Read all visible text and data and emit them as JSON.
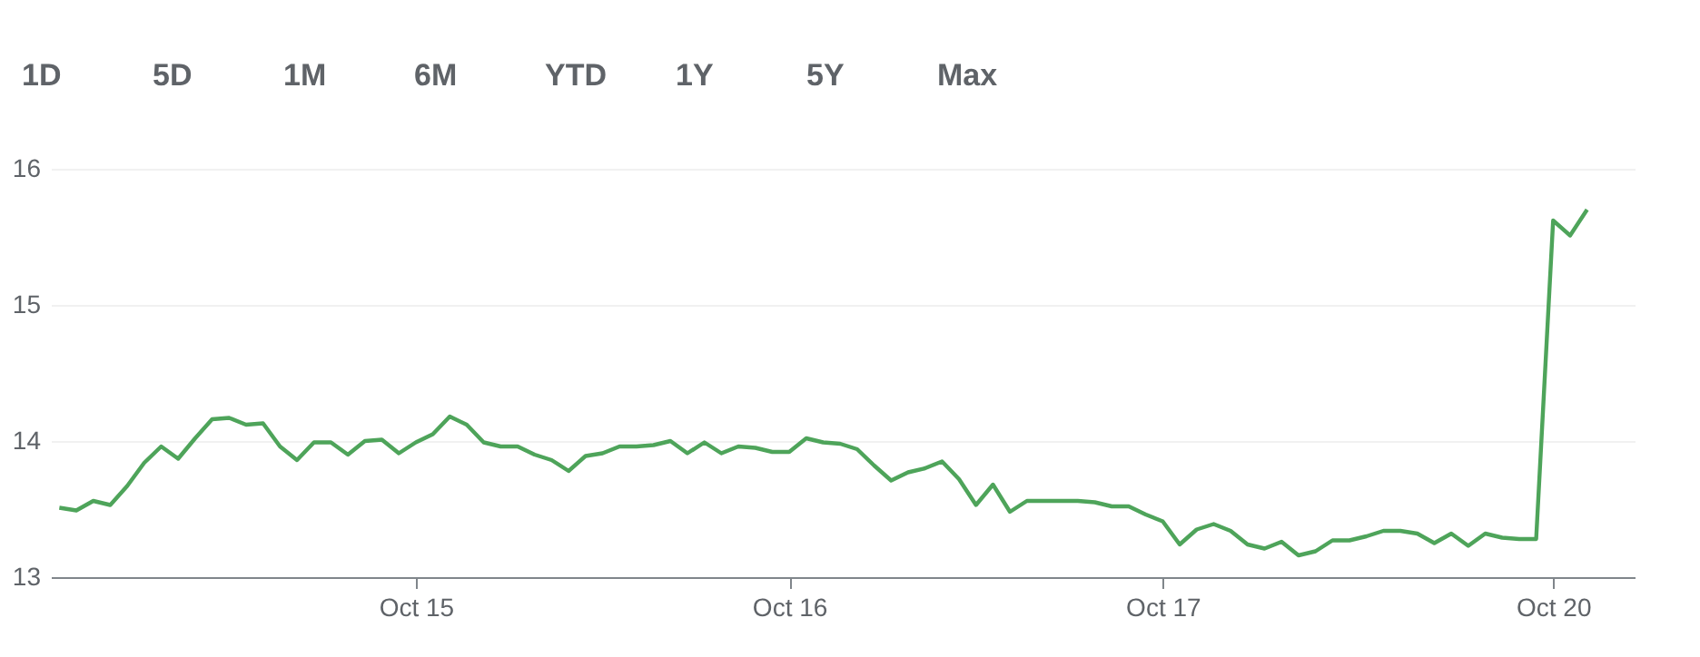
{
  "chart_data": {
    "type": "line",
    "annotations": [
      "1D",
      "5D",
      "1M",
      "6M",
      "YTD",
      "1Y",
      "5Y",
      "Max"
    ],
    "categories": [
      null,
      null,
      null,
      null,
      null,
      null,
      null,
      null,
      null,
      null,
      null,
      null,
      null,
      null,
      null,
      null,
      null,
      null,
      null,
      null,
      null,
      "Oct 15",
      null,
      null,
      null,
      null,
      null,
      null,
      null,
      null,
      null,
      null,
      null,
      null,
      null,
      null,
      null,
      null,
      null,
      null,
      null,
      null,
      null,
      "Oct 16",
      null,
      null,
      null,
      null,
      null,
      null,
      null,
      null,
      null,
      null,
      null,
      null,
      null,
      null,
      null,
      null,
      null,
      null,
      null,
      null,
      null,
      "Oct 17",
      null,
      null,
      null,
      null,
      null,
      null,
      null,
      null,
      null,
      null,
      null,
      null,
      null,
      null,
      null,
      null,
      null,
      null,
      null,
      null,
      null,
      null,
      "Oct 20",
      null,
      null
    ],
    "series": [
      {
        "color": "#4ea45a",
        "values": [
          13.51,
          13.49,
          13.56,
          13.53,
          13.67,
          13.84,
          13.96,
          13.87,
          14.02,
          14.16,
          14.17,
          14.12,
          14.13,
          13.96,
          13.86,
          13.99,
          13.99,
          13.9,
          14.0,
          14.01,
          13.91,
          13.99,
          14.05,
          14.18,
          14.12,
          13.99,
          13.96,
          13.96,
          13.9,
          13.86,
          13.78,
          13.89,
          13.91,
          13.96,
          13.96,
          13.97,
          14.0,
          13.91,
          13.99,
          13.91,
          13.96,
          13.95,
          13.92,
          13.92,
          14.02,
          13.99,
          13.98,
          13.94,
          13.82,
          13.71,
          13.77,
          13.8,
          13.85,
          13.72,
          13.53,
          13.68,
          13.48,
          13.56,
          13.56,
          13.56,
          13.56,
          13.55,
          13.52,
          13.52,
          13.46,
          13.41,
          13.24,
          13.35,
          13.39,
          13.34,
          13.24,
          13.21,
          13.26,
          13.16,
          13.19,
          13.27,
          13.27,
          13.3,
          13.34,
          13.34,
          13.32,
          13.25,
          13.32,
          13.23,
          13.32,
          13.29,
          13.28,
          13.28,
          15.62,
          15.51,
          15.7
        ]
      }
    ],
    "ylim": [
      13,
      16
    ],
    "yticks": [
      13,
      14,
      15,
      16
    ],
    "grid": "y",
    "line_style": "solid"
  }
}
